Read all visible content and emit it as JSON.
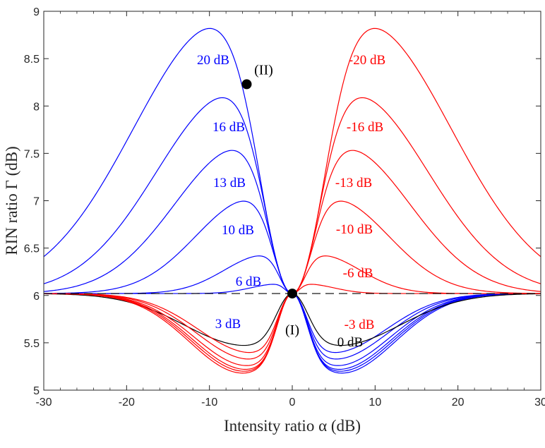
{
  "chart_data": {
    "type": "line",
    "xlabel": "Intensity ratio α (dB)",
    "ylabel": "RIN ratio Γ (dB)",
    "xlim": [
      -30,
      30
    ],
    "ylim": [
      5,
      9
    ],
    "xticks": [
      "-30",
      "-20",
      "-10",
      "0",
      "10",
      "20",
      "30"
    ],
    "yticks": [
      "5",
      "5.5",
      "6",
      "6.5",
      "7",
      "7.5",
      "8",
      "8.5",
      "9"
    ],
    "grid": false,
    "legend": "none",
    "baseline": {
      "y": 6.02,
      "style": "dashed",
      "color": "#000000"
    },
    "colors": {
      "blue": "#0000ff",
      "red": "#ff0000",
      "black": "#000000"
    },
    "series": [
      {
        "label": "20 dB",
        "color": "#0000ff",
        "peak": {
          "x": -8.3,
          "y": 8.73
        },
        "dip": {
          "x": 5.9,
          "y": 5.18
        }
      },
      {
        "label": "16 dB",
        "color": "#0000ff",
        "peak": {
          "x": -7.0,
          "y": 8.02
        },
        "dip": {
          "x": 5.7,
          "y": 5.2
        }
      },
      {
        "label": "13 dB",
        "color": "#0000ff",
        "peak": {
          "x": -6.0,
          "y": 7.48
        },
        "dip": {
          "x": 5.5,
          "y": 5.22
        }
      },
      {
        "label": "10 dB",
        "color": "#0000ff",
        "peak": {
          "x": -4.8,
          "y": 6.96
        },
        "dip": {
          "x": 5.3,
          "y": 5.26
        }
      },
      {
        "label": "6 dB",
        "color": "#0000ff",
        "peak": {
          "x": -3.2,
          "y": 6.4
        },
        "dip": {
          "x": 5.0,
          "y": 5.33
        }
      },
      {
        "label": "3 dB",
        "color": "#0000ff",
        "peak": {
          "x": -1.7,
          "y": 6.11
        },
        "dip": {
          "x": 4.8,
          "y": 5.4
        }
      },
      {
        "label": "0 dB",
        "color": "#000000",
        "peak": null,
        "dip": {
          "x": -5.5,
          "y": 5.47
        },
        "dip2": {
          "x": 5.5,
          "y": 5.47
        }
      },
      {
        "label": "-3 dB",
        "color": "#ff0000",
        "peak": {
          "x": 1.7,
          "y": 6.11
        },
        "dip": {
          "x": -4.8,
          "y": 5.4
        }
      },
      {
        "label": "-6 dB",
        "color": "#ff0000",
        "peak": {
          "x": 3.2,
          "y": 6.4
        },
        "dip": {
          "x": -5.0,
          "y": 5.33
        }
      },
      {
        "label": "-10 dB",
        "color": "#ff0000",
        "peak": {
          "x": 4.8,
          "y": 6.96
        },
        "dip": {
          "x": -5.3,
          "y": 5.26
        }
      },
      {
        "label": "-13 dB",
        "color": "#ff0000",
        "peak": {
          "x": 6.0,
          "y": 7.48
        },
        "dip": {
          "x": -5.5,
          "y": 5.22
        }
      },
      {
        "label": "-16 dB",
        "color": "#ff0000",
        "peak": {
          "x": 7.0,
          "y": 8.02
        },
        "dip": {
          "x": -5.7,
          "y": 5.2
        }
      },
      {
        "label": "-20 dB",
        "color": "#ff0000",
        "peak": {
          "x": 8.3,
          "y": 8.73
        },
        "dip": {
          "x": -5.9,
          "y": 5.18
        }
      }
    ],
    "annotations": [
      {
        "text": "(I)",
        "point": {
          "x": 0,
          "y": 6.02
        }
      },
      {
        "text": "(II)",
        "point": {
          "x": -5.5,
          "y": 8.23
        }
      }
    ]
  }
}
